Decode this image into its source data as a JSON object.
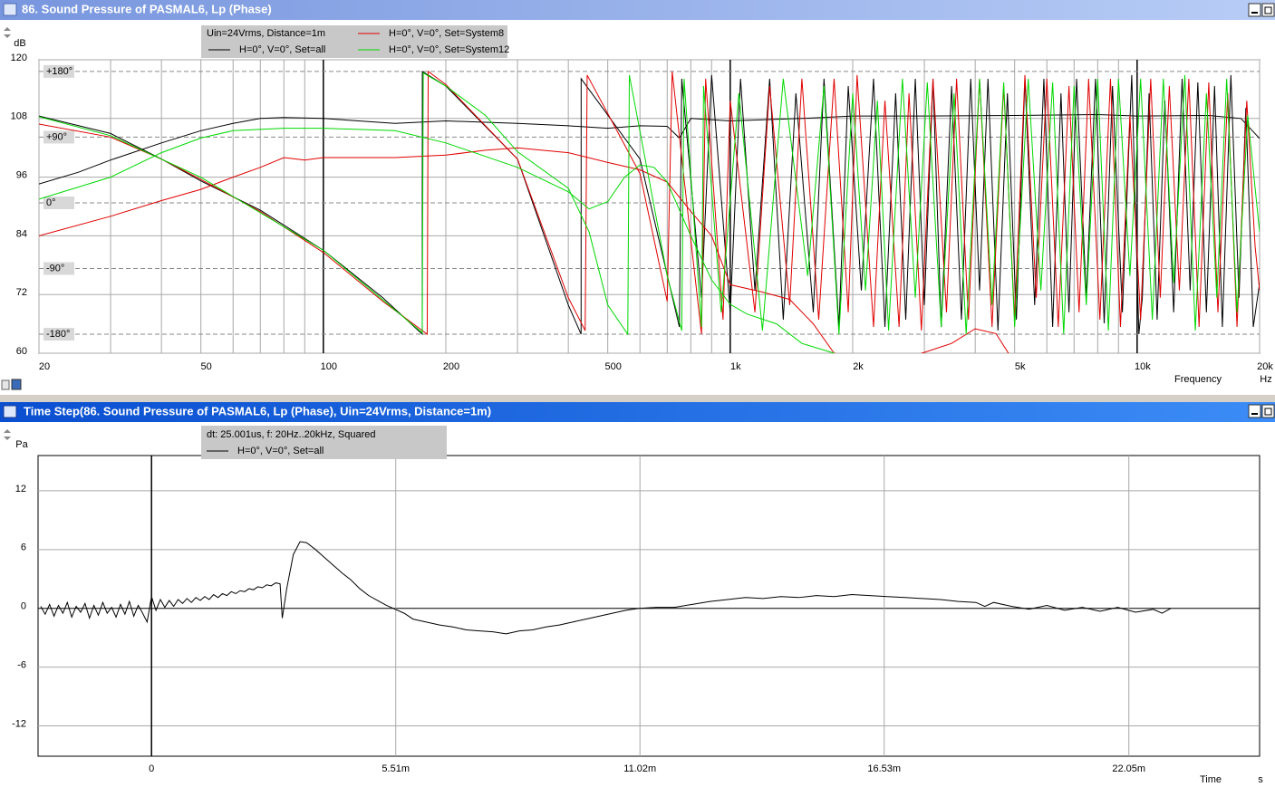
{
  "chart_data": [
    {
      "type": "line",
      "title": "86. Sound Pressure of PASMAL6, Lp (Phase)",
      "legend_title": "Uin=24Vrms, Distance=1m",
      "y_label": "dB",
      "x_label": "Frequency",
      "x_unit": "Hz",
      "xscale": "log",
      "xlim": [
        20,
        20000
      ],
      "xticks": [
        20,
        50,
        100,
        200,
        500,
        {
          "value": 1000,
          "label": "1k"
        },
        {
          "value": 2000,
          "label": "2k"
        },
        {
          "value": 5000,
          "label": "5k"
        },
        {
          "value": 10000,
          "label": "10k"
        },
        {
          "value": 20000,
          "label": "20k"
        }
      ],
      "xgrid": [
        30,
        40,
        60,
        70,
        80,
        90,
        300,
        400,
        600,
        700,
        800,
        900,
        3000,
        4000,
        6000,
        7000,
        8000,
        9000
      ],
      "ylim": [
        60,
        120
      ],
      "yticks": [
        60,
        72,
        84,
        96,
        108,
        120
      ],
      "y2lim": [
        -206,
        196
      ],
      "y2ticks": [
        {
          "value": 180,
          "label": "+180°"
        },
        {
          "value": 90,
          "label": "+90°"
        },
        {
          "value": 0,
          "label": "0°"
        },
        {
          "value": -90,
          "label": "-90°"
        },
        {
          "value": -180,
          "label": "-180°"
        }
      ],
      "grid": true,
      "series": [
        {
          "name": "H=0°, V=0°, Set=all",
          "color": "#000000",
          "x": [
            20,
            25,
            30,
            40,
            50,
            60,
            70,
            80,
            100,
            150,
            200,
            300,
            400,
            500,
            600,
            700,
            750,
            800,
            1000,
            1500,
            2000,
            3000,
            5000,
            8000,
            10000,
            15000,
            18000,
            20000
          ],
          "values": [
            94.6,
            97,
            99.5,
            103,
            105.5,
            107,
            108,
            108.2,
            108,
            107,
            107.5,
            107,
            106.5,
            106,
            106.5,
            106.4,
            104,
            108,
            107.5,
            108,
            108.5,
            108.5,
            108.6,
            108.8,
            108.5,
            108.6,
            108,
            103.9
          ],
          "phase_x": [
            20,
            30,
            40,
            50,
            70,
            100,
            140,
            175,
            175.1,
            200,
            300,
            400,
            430,
            430.1,
            600,
            750,
            760,
            850,
            900,
            1000,
            1060,
            1150,
            1250,
            1350,
            1450,
            1600,
            1700,
            1850,
            1950,
            2100,
            2250,
            2400,
            2550,
            2700,
            2850,
            3000,
            3150,
            3300,
            3500,
            3700,
            3900,
            4100,
            4300,
            4550,
            4800,
            5050,
            5300,
            5600,
            5900,
            6200,
            6500,
            6800,
            7100,
            7500,
            7900,
            8300,
            8700,
            9200,
            9700,
            10100,
            10300,
            10700,
            11200,
            11700,
            12300,
            12900,
            13500,
            14100,
            14800,
            15500,
            16200,
            17000,
            17800,
            18500,
            19300,
            20000
          ],
          "phase_values": [
            119,
            95,
            60,
            30,
            -10,
            -65,
            -130,
            -180,
            180,
            160,
            60,
            -140,
            -180,
            170,
            60,
            -170,
            170,
            -130,
            175,
            -150,
            170,
            -120,
            170,
            -160,
            150,
            -150,
            170,
            -170,
            160,
            -120,
            170,
            -170,
            150,
            -160,
            170,
            -140,
            170,
            -170,
            160,
            -160,
            170,
            -120,
            170,
            -175,
            150,
            -160,
            170,
            -140,
            170,
            -170,
            150,
            -150,
            170,
            -130,
            170,
            -165,
            160,
            -150,
            175,
            -180,
            -130,
            150,
            -160,
            140,
            -150,
            170,
            -120,
            165,
            -150,
            160,
            -170,
            175,
            -130,
            130,
            -170,
            -110
          ]
        },
        {
          "name": "H=0°, V=0°, Set=System8",
          "color": "#e00000",
          "x": [
            20,
            30,
            40,
            50,
            60,
            70,
            80,
            90,
            100,
            150,
            200,
            250,
            300,
            400,
            500,
            600,
            700,
            800,
            900,
            1000,
            1200,
            1400,
            1600,
            1800,
            2500,
            3500,
            4000,
            4500,
            5000
          ],
          "values": [
            84,
            88,
            91.2,
            93.5,
            96,
            98,
            100,
            99.5,
            100,
            100,
            100.5,
            101.5,
            102,
            101,
            99,
            97.5,
            95,
            89,
            84,
            74,
            72.5,
            71,
            66,
            60,
            58,
            62,
            65,
            64,
            58
          ],
          "phase_x": [
            20,
            30,
            40,
            50,
            70,
            100,
            140,
            180,
            181,
            200,
            300,
            400,
            440,
            445,
            600,
            700,
            720,
            800,
            850,
            870,
            960,
            1000,
            1150,
            1250,
            1400,
            1500,
            1650,
            1800,
            1950,
            2050,
            2250,
            2400,
            2600,
            2750,
            2950,
            3150,
            3400,
            3600,
            3850,
            4100,
            4400,
            4700,
            5000,
            5300,
            5650,
            6000,
            6400,
            6800,
            7200,
            7600,
            8100,
            8600,
            9100,
            9600,
            10200,
            10800,
            11400,
            12000,
            12700,
            13400,
            14200,
            15000,
            15800,
            16700,
            17600,
            18600,
            19500,
            20000
          ],
          "phase_values": [
            108,
            90,
            60,
            32,
            -12,
            -68,
            -135,
            -180,
            180,
            162,
            60,
            -130,
            -175,
            175,
            40,
            -135,
            180,
            -50,
            -180,
            170,
            -160,
            140,
            -150,
            160,
            -140,
            170,
            -160,
            170,
            -150,
            175,
            -170,
            140,
            -170,
            150,
            -175,
            170,
            -150,
            170,
            -160,
            170,
            -170,
            160,
            -160,
            175,
            -130,
            170,
            -170,
            160,
            -150,
            170,
            -160,
            170,
            -170,
            120,
            -160,
            170,
            -130,
            160,
            -120,
            170,
            -170,
            165,
            -150,
            150,
            -170,
            140,
            -60,
            -120
          ]
        },
        {
          "name": "H=0°, V=0°, Set=System12",
          "color": "#00d800",
          "x": [
            20,
            30,
            40,
            50,
            60,
            80,
            100,
            150,
            200,
            300,
            400,
            450,
            500,
            550,
            600,
            650,
            700,
            800,
            900,
            1000,
            1100,
            1300,
            1500,
            1800,
            2000
          ],
          "values": [
            91.5,
            96,
            101,
            104,
            105.5,
            106,
            106,
            105.5,
            103,
            98,
            93,
            89.5,
            91,
            96,
            98.5,
            98,
            95,
            84,
            75,
            70,
            68,
            66,
            62,
            60,
            57
          ],
          "phase_x": [
            20,
            30,
            50,
            100,
            175,
            176,
            200,
            250,
            300,
            400,
            450,
            500,
            560,
            565,
            700,
            760,
            770,
            850,
            860,
            950,
            1050,
            1200,
            1350,
            1550,
            1700,
            1850,
            2000,
            2150,
            2300,
            2450,
            2650,
            2850,
            3050,
            3300,
            3550,
            3800,
            4100,
            4400,
            4700,
            5000,
            5400,
            5800,
            6200,
            6600,
            7000,
            7500,
            8000,
            8500,
            9000,
            9600,
            10200,
            10900,
            11600,
            12300,
            13100,
            13900,
            14800,
            15700,
            16600,
            17600,
            18700,
            20000
          ],
          "phase_values": [
            118,
            92,
            35,
            -65,
            -178,
            178,
            160,
            120,
            70,
            20,
            -40,
            -140,
            -180,
            175,
            -100,
            -175,
            170,
            -170,
            160,
            -150,
            150,
            -175,
            170,
            -100,
            160,
            -180,
            150,
            -120,
            140,
            -175,
            170,
            -130,
            165,
            -170,
            150,
            -180,
            170,
            -140,
            165,
            -170,
            170,
            -120,
            165,
            -180,
            160,
            -140,
            170,
            -175,
            170,
            -100,
            170,
            -160,
            170,
            -110,
            175,
            -175,
            150,
            -130,
            170,
            -150,
            120,
            -40
          ]
        }
      ]
    },
    {
      "type": "line",
      "title": "Time Step(86. Sound Pressure of PASMAL6, Lp (Phase), Uin=24Vrms, Distance=1m)",
      "legend_title": "dt: 25.001us, f: 20Hz..20kHz, Squared",
      "y_label": "Pa",
      "x_label": "Time",
      "x_unit": "s",
      "xlim": [
        -0.00256,
        0.025
      ],
      "xticks": [
        0,
        {
          "value": 0.00551,
          "label": "5.51m"
        },
        {
          "value": 0.01102,
          "label": "11.02m"
        },
        {
          "value": 0.01653,
          "label": "16.53m"
        },
        {
          "value": 0.02205,
          "label": "22.05m"
        }
      ],
      "ylim": [
        -15.1,
        15.6
      ],
      "yticks": [
        -12,
        -6,
        0,
        6,
        12
      ],
      "grid": true,
      "series": [
        {
          "name": "H=0°, V=0°, Set=all",
          "color": "#000000",
          "x": [
            -0.0025,
            -0.0024,
            -0.0023,
            -0.0022,
            -0.0021,
            -0.002,
            -0.0019,
            -0.0018,
            -0.0017,
            -0.0016,
            -0.0015,
            -0.0014,
            -0.0013,
            -0.0012,
            -0.0011,
            -0.001,
            -0.0009,
            -0.0008,
            -0.0007,
            -0.0006,
            -0.0005,
            -0.0004,
            -0.0003,
            -0.0002,
            -0.0001,
            0,
            0.0001,
            0.0002,
            0.0003,
            0.0004,
            0.0005,
            0.0006,
            0.0007,
            0.0008,
            0.0009,
            0.001,
            0.0011,
            0.0012,
            0.0013,
            0.0014,
            0.0015,
            0.0016,
            0.0017,
            0.0018,
            0.0019,
            0.002,
            0.0021,
            0.0022,
            0.0023,
            0.0024,
            0.0025,
            0.0026,
            0.0027,
            0.0028,
            0.0029,
            0.00295,
            0.00305,
            0.0032,
            0.00335,
            0.0035,
            0.0037,
            0.0039,
            0.0041,
            0.0043,
            0.0045,
            0.0047,
            0.0049,
            0.0051,
            0.0053,
            0.0055,
            0.0057,
            0.0059,
            0.0062,
            0.0065,
            0.0068,
            0.0071,
            0.0074,
            0.0077,
            0.008,
            0.0083,
            0.0086,
            0.0089,
            0.0092,
            0.0095,
            0.0098,
            0.0101,
            0.0104,
            0.0107,
            0.011,
            0.0114,
            0.0118,
            0.0122,
            0.0126,
            0.013,
            0.0134,
            0.0138,
            0.0142,
            0.0146,
            0.015,
            0.0154,
            0.0158,
            0.0162,
            0.0166,
            0.017,
            0.0174,
            0.0178,
            0.0182,
            0.0186,
            0.0188,
            0.019,
            0.0194,
            0.0198,
            0.0202,
            0.0206,
            0.021,
            0.0214,
            0.0218,
            0.0222,
            0.0226,
            0.0228,
            0.023
          ],
          "values": [
            0.2,
            -0.6,
            0.4,
            -0.8,
            0.3,
            -0.5,
            0.6,
            -0.9,
            0.2,
            -0.4,
            0.5,
            -1.0,
            0.3,
            -0.7,
            0.6,
            -0.5,
            0.1,
            -0.9,
            0.4,
            -0.6,
            0.7,
            -0.8,
            0.3,
            -0.5,
            -1.4,
            1.2,
            -0.2,
            0.9,
            0.1,
            0.8,
            0.2,
            0.9,
            0.5,
            1.0,
            0.6,
            1.1,
            0.8,
            1.2,
            0.9,
            1.4,
            1.1,
            1.5,
            1.3,
            1.7,
            1.5,
            1.8,
            1.7,
            2.0,
            1.9,
            2.2,
            2.1,
            2.4,
            2.3,
            2.6,
            2.5,
            -1.0,
            2.0,
            5.5,
            6.8,
            6.7,
            6.0,
            5.2,
            4.4,
            3.6,
            2.9,
            2.0,
            1.3,
            0.8,
            0.3,
            -0.1,
            -0.5,
            -1.1,
            -1.4,
            -1.7,
            -1.9,
            -2.2,
            -2.3,
            -2.4,
            -2.6,
            -2.3,
            -2.2,
            -1.9,
            -1.7,
            -1.4,
            -1.1,
            -0.8,
            -0.5,
            -0.2,
            0,
            0.1,
            0.1,
            0.4,
            0.7,
            0.9,
            1.1,
            1.0,
            1.2,
            1.1,
            1.3,
            1.2,
            1.4,
            1.3,
            1.2,
            1.1,
            1.0,
            0.9,
            0.7,
            0.6,
            0.2,
            0.6,
            0.2,
            -0.1,
            0.3,
            -0.2,
            0.1,
            -0.3,
            0.1,
            -0.4,
            -0.1,
            -0.5,
            0.0
          ]
        }
      ]
    }
  ]
}
